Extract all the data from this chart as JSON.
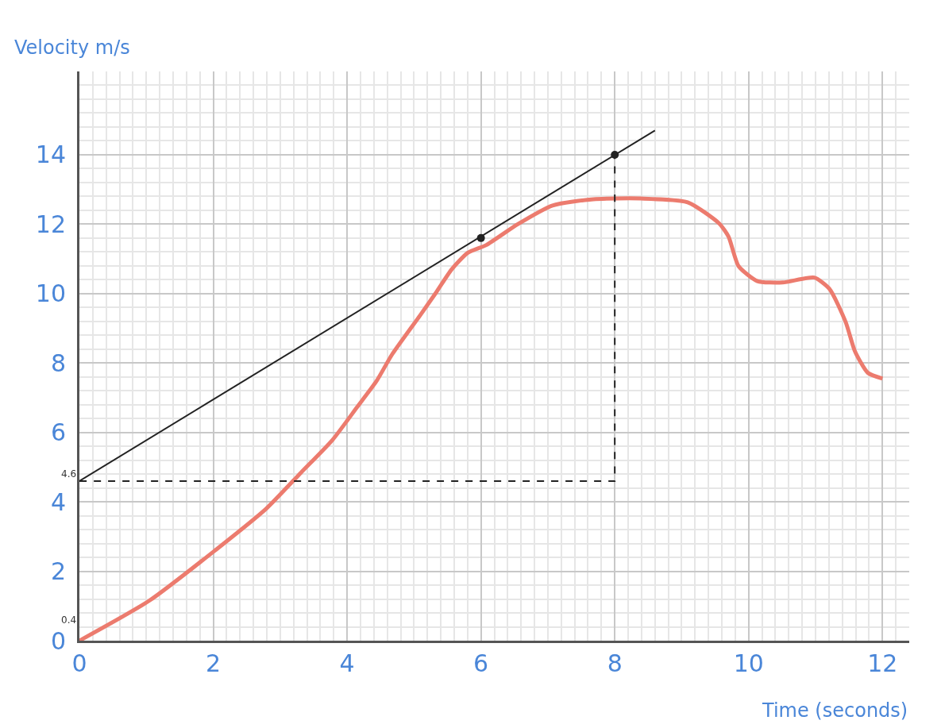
{
  "chart_data": {
    "type": "line",
    "xlabel": "Time (seconds)",
    "ylabel": "Velocity m/s",
    "xlim": [
      0,
      12.4
    ],
    "ylim": [
      0,
      16.4
    ],
    "xticks": [
      0,
      2,
      4,
      6,
      8,
      10,
      12
    ],
    "yticks": [
      0,
      2,
      4,
      6,
      8,
      10,
      12,
      14
    ],
    "grid": true,
    "annotations": [
      {
        "text": "4.6",
        "x": 0,
        "y": 4.6
      },
      "0.4"
    ],
    "series": [
      {
        "color": "#ec7b6e",
        "marker": "none",
        "line_style": "solid",
        "x": [
          0,
          1.05,
          2.04,
          2.79,
          3.31,
          3.78,
          4.15,
          4.44,
          4.67,
          5.09,
          5.33,
          5.56,
          5.8,
          6.08,
          6.55,
          7.07,
          7.68,
          8.39,
          9.09,
          9.56,
          9.7,
          9.85,
          10.13,
          10.51,
          10.98,
          11.21,
          11.45,
          11.59,
          11.78,
          12.0
        ],
        "values": [
          0,
          1.16,
          2.62,
          3.8,
          4.84,
          5.78,
          6.73,
          7.48,
          8.24,
          9.37,
          10.03,
          10.69,
          11.17,
          11.4,
          12.0,
          12.54,
          12.72,
          12.74,
          12.63,
          12.02,
          11.64,
          10.79,
          10.36,
          10.32,
          10.46,
          10.13,
          9.18,
          8.33,
          7.72,
          7.55
        ]
      },
      {
        "color": "#222222",
        "marker": "none",
        "line_style": "solid",
        "x": [
          0,
          8.6
        ],
        "values": [
          4.6,
          14.7
        ]
      },
      {
        "color": "#222222",
        "marker": "none",
        "line_style": "dashed",
        "x": [
          0,
          8,
          8
        ],
        "values": [
          4.6,
          4.6,
          14
        ]
      },
      {
        "type": "scatter",
        "color": "#222222",
        "marker": "circle",
        "x": [
          6,
          8
        ],
        "values": [
          11.6,
          14
        ]
      }
    ]
  }
}
